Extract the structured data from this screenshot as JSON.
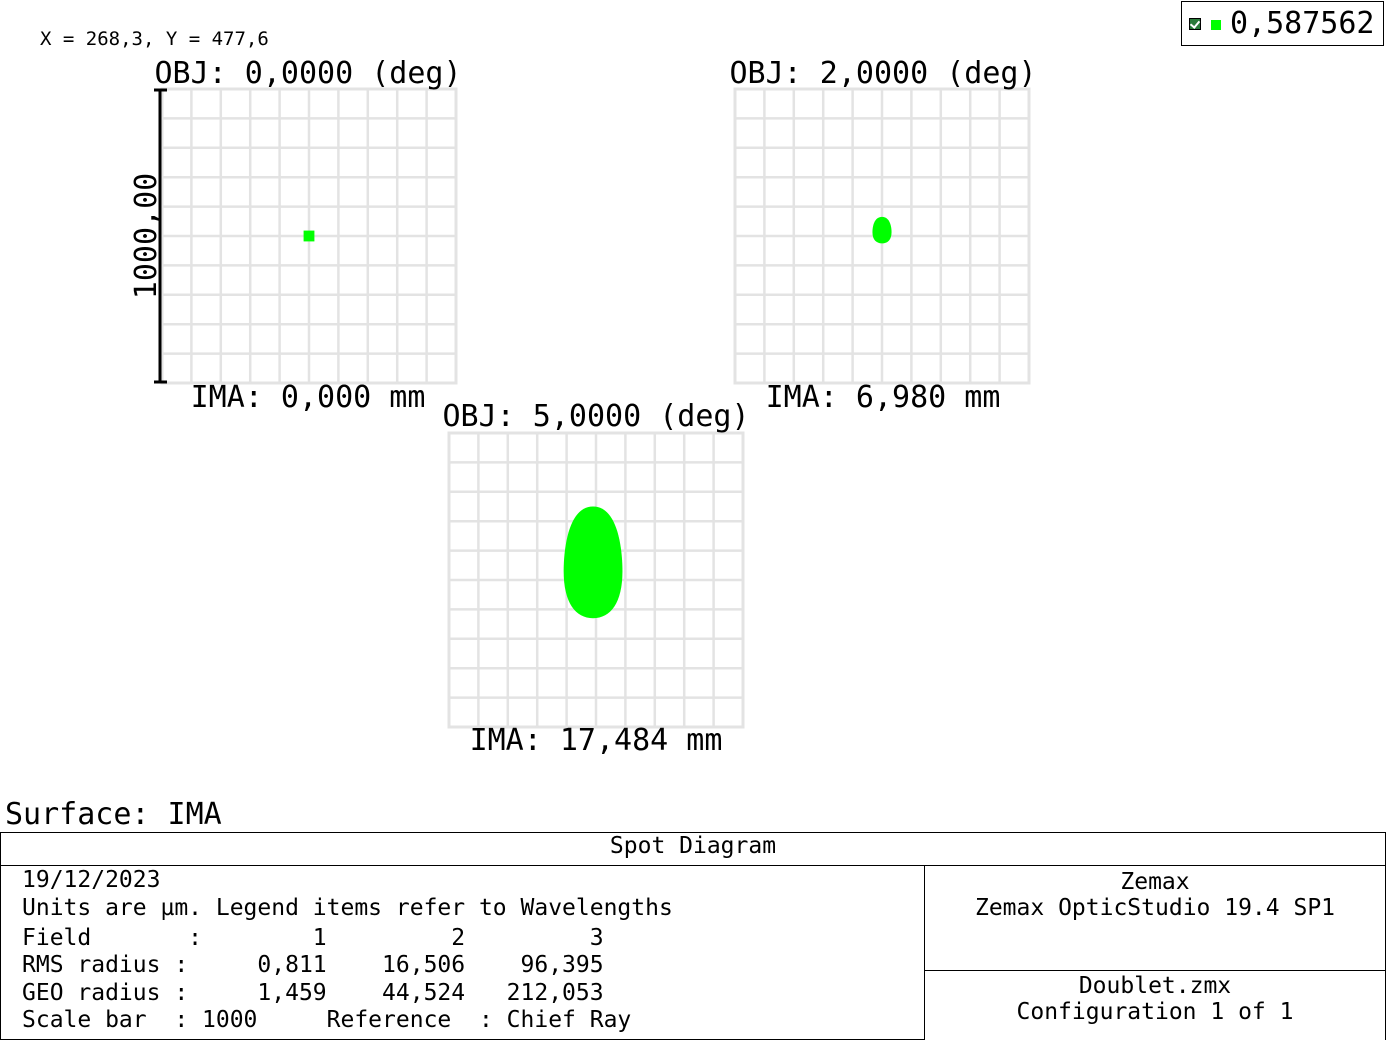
{
  "coordinate_readout": "X = 268,3, Y = 477,6",
  "legend": {
    "checked": true,
    "swatch_color": "#00ff00",
    "wavelength": "0,587562"
  },
  "chart_data": {
    "type": "scatter",
    "title": "Spot Diagram",
    "units": "µm",
    "scale_bar_value": "1000,00",
    "spot_color": "#00ff00",
    "grid": true,
    "field_plots": [
      {
        "field": 1,
        "obj_label": "OBJ: 0,0000 (deg)",
        "ima_label": "IMA: 0,000 mm",
        "rms_radius_um": 0.811,
        "geo_radius_um": 1.459,
        "spot_center_um": [
          0,
          0
        ],
        "spot_width_um": 30,
        "spot_height_um": 30
      },
      {
        "field": 2,
        "obj_label": "OBJ: 2,0000 (deg)",
        "ima_label": "IMA: 6,980 mm",
        "rms_radius_um": 16.506,
        "geo_radius_um": 44.524,
        "spot_center_um": [
          0,
          -20
        ],
        "spot_width_um": 65,
        "spot_height_um": 90
      },
      {
        "field": 3,
        "obj_label": "OBJ: 5,0000 (deg)",
        "ima_label": "IMA: 17,484 mm",
        "rms_radius_um": 96.395,
        "geo_radius_um": 212.053,
        "spot_center_um": [
          -10,
          -60
        ],
        "spot_width_um": 200,
        "spot_height_um": 380
      }
    ]
  },
  "surface_label": "Surface: IMA",
  "title_block": {
    "title": "Spot Diagram",
    "date": "19/12/2023",
    "units_line": "Units are µm. Legend items refer to Wavelengths",
    "field_row": "Field       :        1         2         3",
    "rms_row": "RMS radius :     0,811    16,506    96,395",
    "geo_row": "GEO radius :     1,459    44,524   212,053",
    "scale_row": "Scale bar  : 1000     Reference  : Chief Ray",
    "company": "Zemax",
    "software": "Zemax OpticStudio 19.4 SP1",
    "file": "Doublet.zmx",
    "configuration": "Configuration 1 of 1"
  }
}
